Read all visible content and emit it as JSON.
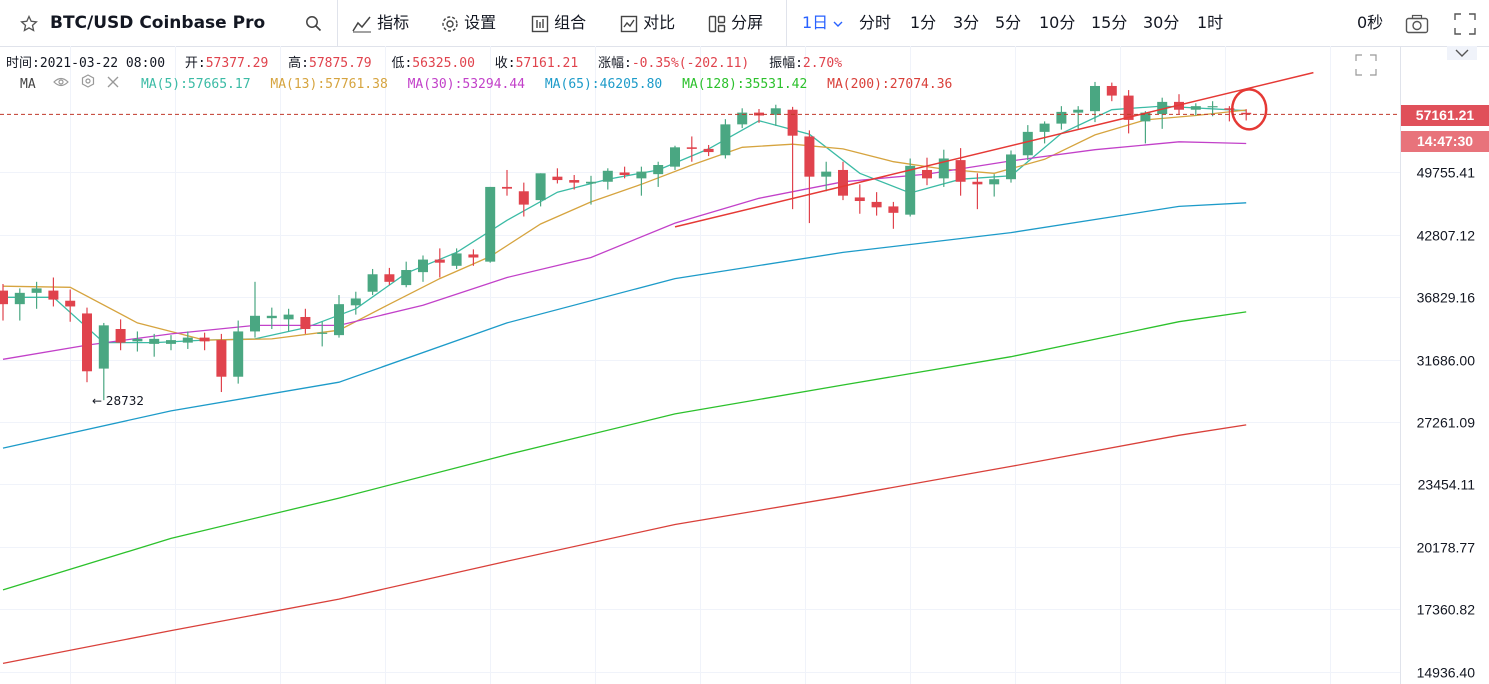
{
  "header": {
    "symbol": "BTC/USD Coinbase Pro",
    "indicators_label": "指标",
    "settings_label": "设置",
    "combo_label": "组合",
    "compare_label": "对比",
    "split_label": "分屏",
    "interval_selected": "1日",
    "intervals": [
      "分时",
      "1分",
      "3分",
      "5分",
      "10分",
      "15分",
      "30分",
      "1时"
    ],
    "countdown": "0秒"
  },
  "ohlc": {
    "time_label": "时间:",
    "time": "2021-03-22 08:00",
    "open_label": "开:",
    "open": "57377.29",
    "high_label": "高:",
    "high": "57875.79",
    "low_label": "低:",
    "low": "56325.00",
    "close_label": "收:",
    "close": "57161.21",
    "change_label": "涨幅:",
    "change": "-0.35%(-202.11)",
    "amp_label": "振幅:",
    "amp": "2.70%"
  },
  "ma_legend": {
    "name": "MA",
    "items": [
      {
        "label": "MA(5):57665.17",
        "color": "#3bbba5"
      },
      {
        "label": "MA(13):57761.38",
        "color": "#d6a43f"
      },
      {
        "label": "MA(30):53294.44",
        "color": "#c241c9"
      },
      {
        "label": "MA(65):46205.80",
        "color": "#1d9bc9"
      },
      {
        "label": "MA(128):35531.42",
        "color": "#2cc12c"
      },
      {
        "label": "MA(200):27074.36",
        "color": "#d9403a"
      }
    ]
  },
  "price_tag": "57161.21",
  "time_tag": "14:47:30",
  "low_marker": "← 28732",
  "chart_data": {
    "type": "candlestick",
    "y_scale": "log",
    "y_ticks": [
      49755.41,
      42807.12,
      36829.16,
      31686.0,
      27261.09,
      23454.11,
      20178.77,
      17360.82,
      14936.4
    ],
    "candles": [
      {
        "o": 37400,
        "h": 38000,
        "l": 34800,
        "c": 36200
      },
      {
        "o": 36200,
        "h": 37600,
        "l": 34800,
        "c": 37200
      },
      {
        "o": 37200,
        "h": 38200,
        "l": 35800,
        "c": 37600
      },
      {
        "o": 37400,
        "h": 38600,
        "l": 36000,
        "c": 36600
      },
      {
        "o": 36500,
        "h": 37500,
        "l": 34700,
        "c": 36000
      },
      {
        "o": 35400,
        "h": 35900,
        "l": 30000,
        "c": 30800
      },
      {
        "o": 31000,
        "h": 34600,
        "l": 28732,
        "c": 34400
      },
      {
        "o": 34100,
        "h": 34900,
        "l": 32400,
        "c": 33000
      },
      {
        "o": 33100,
        "h": 33900,
        "l": 32300,
        "c": 33300
      },
      {
        "o": 32900,
        "h": 33700,
        "l": 31900,
        "c": 33300
      },
      {
        "o": 32900,
        "h": 33600,
        "l": 32400,
        "c": 33200
      },
      {
        "o": 33000,
        "h": 33900,
        "l": 32500,
        "c": 33400
      },
      {
        "o": 33400,
        "h": 33800,
        "l": 32400,
        "c": 33100
      },
      {
        "o": 33200,
        "h": 33700,
        "l": 29300,
        "c": 30400
      },
      {
        "o": 30400,
        "h": 34800,
        "l": 29900,
        "c": 33900
      },
      {
        "o": 33900,
        "h": 38200,
        "l": 33400,
        "c": 35200
      },
      {
        "o": 35000,
        "h": 35900,
        "l": 34100,
        "c": 35200
      },
      {
        "o": 34900,
        "h": 35800,
        "l": 33900,
        "c": 35300
      },
      {
        "o": 35100,
        "h": 35800,
        "l": 33700,
        "c": 34100
      },
      {
        "o": 33700,
        "h": 34700,
        "l": 32700,
        "c": 33800
      },
      {
        "o": 33600,
        "h": 37000,
        "l": 33400,
        "c": 36200
      },
      {
        "o": 36100,
        "h": 37300,
        "l": 35300,
        "c": 36700
      },
      {
        "o": 37300,
        "h": 39400,
        "l": 37000,
        "c": 38900
      },
      {
        "o": 38900,
        "h": 39500,
        "l": 37900,
        "c": 38200
      },
      {
        "o": 37900,
        "h": 40100,
        "l": 37700,
        "c": 39300
      },
      {
        "o": 39100,
        "h": 40700,
        "l": 38200,
        "c": 40300
      },
      {
        "o": 40300,
        "h": 41400,
        "l": 38600,
        "c": 40000
      },
      {
        "o": 39700,
        "h": 41400,
        "l": 39400,
        "c": 40900
      },
      {
        "o": 40800,
        "h": 41300,
        "l": 39700,
        "c": 40500
      },
      {
        "o": 40100,
        "h": 48000,
        "l": 40000,
        "c": 48000
      },
      {
        "o": 48000,
        "h": 50000,
        "l": 47000,
        "c": 47800
      },
      {
        "o": 47500,
        "h": 48500,
        "l": 44700,
        "c": 46000
      },
      {
        "o": 46500,
        "h": 49600,
        "l": 45800,
        "c": 49600
      },
      {
        "o": 49200,
        "h": 50200,
        "l": 48400,
        "c": 48800
      },
      {
        "o": 48800,
        "h": 49400,
        "l": 47700,
        "c": 48500
      },
      {
        "o": 48400,
        "h": 49300,
        "l": 46000,
        "c": 48600
      },
      {
        "o": 48600,
        "h": 50200,
        "l": 47700,
        "c": 49900
      },
      {
        "o": 49700,
        "h": 50400,
        "l": 49000,
        "c": 49400
      },
      {
        "o": 49000,
        "h": 50400,
        "l": 47000,
        "c": 49800
      },
      {
        "o": 49500,
        "h": 51000,
        "l": 48000,
        "c": 50600
      },
      {
        "o": 50400,
        "h": 53000,
        "l": 50000,
        "c": 52800
      },
      {
        "o": 52800,
        "h": 54200,
        "l": 51000,
        "c": 52600
      },
      {
        "o": 52600,
        "h": 53100,
        "l": 51700,
        "c": 52200
      },
      {
        "o": 51800,
        "h": 56500,
        "l": 51400,
        "c": 55800
      },
      {
        "o": 55800,
        "h": 58000,
        "l": 55300,
        "c": 57400
      },
      {
        "o": 57400,
        "h": 57900,
        "l": 56000,
        "c": 57000
      },
      {
        "o": 57100,
        "h": 58500,
        "l": 55600,
        "c": 58000
      },
      {
        "o": 57800,
        "h": 58200,
        "l": 45500,
        "c": 54300
      },
      {
        "o": 54200,
        "h": 55000,
        "l": 44000,
        "c": 49200
      },
      {
        "o": 49200,
        "h": 51000,
        "l": 47500,
        "c": 49800
      },
      {
        "o": 50000,
        "h": 51000,
        "l": 46500,
        "c": 47000
      },
      {
        "o": 46800,
        "h": 48300,
        "l": 45000,
        "c": 46400
      },
      {
        "o": 46300,
        "h": 47400,
        "l": 44800,
        "c": 45700
      },
      {
        "o": 45800,
        "h": 46300,
        "l": 43400,
        "c": 45100
      },
      {
        "o": 44900,
        "h": 51400,
        "l": 44700,
        "c": 50500
      },
      {
        "o": 50000,
        "h": 51500,
        "l": 48200,
        "c": 49000
      },
      {
        "o": 49000,
        "h": 52500,
        "l": 48000,
        "c": 51400
      },
      {
        "o": 51200,
        "h": 52700,
        "l": 47000,
        "c": 48600
      },
      {
        "o": 48600,
        "h": 49600,
        "l": 45500,
        "c": 48300
      },
      {
        "o": 48300,
        "h": 49500,
        "l": 46900,
        "c": 48900
      },
      {
        "o": 48900,
        "h": 52400,
        "l": 48500,
        "c": 51900
      },
      {
        "o": 51800,
        "h": 55700,
        "l": 51200,
        "c": 54800
      },
      {
        "o": 54800,
        "h": 56200,
        "l": 53300,
        "c": 55900
      },
      {
        "o": 55900,
        "h": 58300,
        "l": 55100,
        "c": 57500
      },
      {
        "o": 57400,
        "h": 58300,
        "l": 55200,
        "c": 57800
      },
      {
        "o": 57600,
        "h": 61800,
        "l": 56100,
        "c": 61200
      },
      {
        "o": 61200,
        "h": 61700,
        "l": 59000,
        "c": 59800
      },
      {
        "o": 59800,
        "h": 60600,
        "l": 54600,
        "c": 56400
      },
      {
        "o": 56200,
        "h": 57600,
        "l": 53300,
        "c": 57400
      },
      {
        "o": 57200,
        "h": 59500,
        "l": 55200,
        "c": 58900
      },
      {
        "o": 58900,
        "h": 60000,
        "l": 57200,
        "c": 57800
      },
      {
        "o": 57800,
        "h": 58700,
        "l": 57000,
        "c": 58300
      },
      {
        "o": 58300,
        "h": 59000,
        "l": 56900,
        "c": 58300
      },
      {
        "o": 58000,
        "h": 58300,
        "l": 56200,
        "c": 57800
      },
      {
        "o": 57377.29,
        "h": 57875.79,
        "l": 56325.0,
        "c": 57161.21
      }
    ],
    "ma": [
      {
        "name": "MA(5)",
        "color": "#3bbba5",
        "values": [
          [
            0,
            36800
          ],
          [
            3,
            36800
          ],
          [
            6,
            33000
          ],
          [
            9,
            33000
          ],
          [
            12,
            33200
          ],
          [
            15,
            33300
          ],
          [
            18,
            34200
          ],
          [
            21,
            35800
          ],
          [
            24,
            39000
          ],
          [
            27,
            41000
          ],
          [
            30,
            44300
          ],
          [
            33,
            47400
          ],
          [
            36,
            48900
          ],
          [
            39,
            50000
          ],
          [
            42,
            52600
          ],
          [
            45,
            56300
          ],
          [
            48,
            54500
          ],
          [
            51,
            49600
          ],
          [
            54,
            47300
          ],
          [
            57,
            48900
          ],
          [
            60,
            49300
          ],
          [
            63,
            54600
          ],
          [
            66,
            57800
          ],
          [
            69,
            58300
          ],
          [
            74,
            57665
          ]
        ]
      },
      {
        "name": "MA(13)",
        "color": "#d6a43f",
        "values": [
          [
            0,
            37800
          ],
          [
            4,
            37700
          ],
          [
            8,
            34600
          ],
          [
            12,
            33200
          ],
          [
            16,
            33300
          ],
          [
            20,
            34000
          ],
          [
            23,
            36200
          ],
          [
            26,
            38500
          ],
          [
            29,
            40600
          ],
          [
            32,
            43900
          ],
          [
            35,
            46300
          ],
          [
            38,
            48300
          ],
          [
            41,
            50600
          ],
          [
            44,
            52800
          ],
          [
            47,
            53200
          ],
          [
            50,
            52600
          ],
          [
            53,
            51000
          ],
          [
            56,
            50100
          ],
          [
            59,
            49600
          ],
          [
            62,
            51300
          ],
          [
            65,
            54400
          ],
          [
            68,
            56400
          ],
          [
            71,
            57000
          ],
          [
            74,
            57761
          ]
        ]
      },
      {
        "name": "MA(30)",
        "color": "#c241c9",
        "values": [
          [
            0,
            31700
          ],
          [
            5,
            32800
          ],
          [
            10,
            33700
          ],
          [
            15,
            34400
          ],
          [
            20,
            34400
          ],
          [
            25,
            36100
          ],
          [
            30,
            38600
          ],
          [
            35,
            40500
          ],
          [
            40,
            44000
          ],
          [
            45,
            46700
          ],
          [
            50,
            48600
          ],
          [
            55,
            49500
          ],
          [
            60,
            51100
          ],
          [
            65,
            52500
          ],
          [
            70,
            53500
          ],
          [
            72,
            53400
          ],
          [
            74,
            53294
          ]
        ]
      },
      {
        "name": "MA(65)",
        "color": "#1d9bc9",
        "values": [
          [
            0,
            25600
          ],
          [
            10,
            28000
          ],
          [
            20,
            30000
          ],
          [
            30,
            34600
          ],
          [
            40,
            38500
          ],
          [
            50,
            41000
          ],
          [
            60,
            43000
          ],
          [
            70,
            45800
          ],
          [
            74,
            46206
          ]
        ]
      },
      {
        "name": "MA(128)",
        "color": "#2cc12c",
        "values": [
          [
            0,
            18200
          ],
          [
            10,
            20600
          ],
          [
            20,
            22700
          ],
          [
            30,
            25200
          ],
          [
            40,
            27800
          ],
          [
            50,
            29800
          ],
          [
            60,
            31900
          ],
          [
            70,
            34700
          ],
          [
            74,
            35531
          ]
        ]
      },
      {
        "name": "MA(200)",
        "color": "#d9403a",
        "values": [
          [
            0,
            15250
          ],
          [
            10,
            16500
          ],
          [
            20,
            17800
          ],
          [
            30,
            19500
          ],
          [
            40,
            21300
          ],
          [
            50,
            22800
          ],
          [
            60,
            24500
          ],
          [
            70,
            26400
          ],
          [
            74,
            27074
          ]
        ]
      }
    ],
    "trendline": {
      "color": "#e53935",
      "from": [
        40,
        43600
      ],
      "to": [
        78,
        63200
      ]
    },
    "highlight_circle": {
      "color": "#e53935",
      "at": [
        74,
        57161.21
      ]
    }
  }
}
